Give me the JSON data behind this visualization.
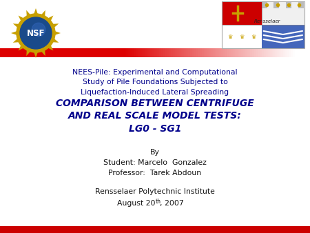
{
  "bg_color": "#ffffff",
  "red_bar_color": "#dd0000",
  "bottom_bar_color": "#cc0000",
  "subtitle_text": "NEES-Pile: Experimental and Computational\nStudy of Pile Foundations Subjected to\nLiquefaction-Induced Lateral Spreading",
  "subtitle_color": "#00008B",
  "main_title_line1": "COMPARISON BETWEEN CENTRIFUGE",
  "main_title_line2": "AND REAL SCALE MODEL TESTS:",
  "main_title_line3": "LG0 - SG1",
  "main_title_color": "#00008B",
  "body_line1": "By",
  "body_line2": "Student: Marcelo  Gonzalez",
  "body_line3": "Professor:  Tarek Abdoun",
  "body_color": "#111111",
  "footer_line1": "Rensselaer Polytechnic Institute",
  "footer_line2_pre": "August 20",
  "footer_superscript": "th",
  "footer_line2_post": ", 2007",
  "footer_color": "#111111",
  "nsf_gold": "#c8a000",
  "nsf_blue": "#1a4a8a",
  "rpi_red": "#cc0000",
  "rpi_gold": "#c8a000",
  "rpi_blue": "#4466bb"
}
